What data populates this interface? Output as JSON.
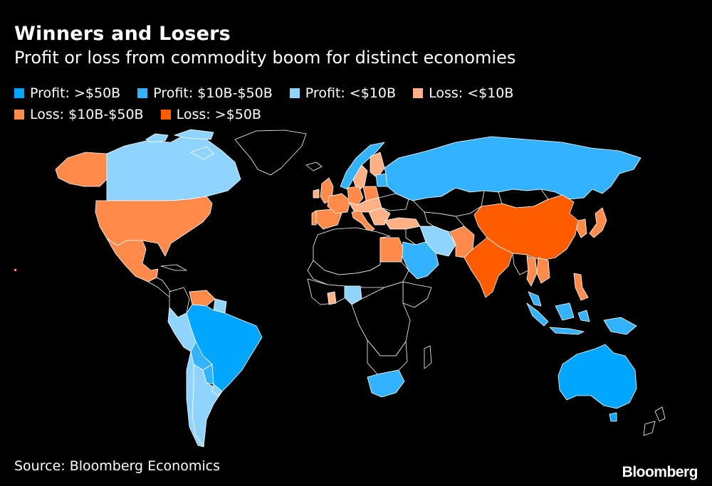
{
  "title": "Winners and Losers",
  "subtitle": "Profit or loss from commodity boom for distinct economies",
  "legend": [
    {
      "label": "Profit: >$50B",
      "color": "#00a6ff"
    },
    {
      "label": "Profit: $10B-$50B",
      "color": "#33b3ff"
    },
    {
      "label": "Profit: <$10B",
      "color": "#8fd4ff"
    },
    {
      "label": "Loss: <$10B",
      "color": "#ffb085"
    },
    {
      "label": "Loss: $10B-$50B",
      "color": "#ff8a4a"
    },
    {
      "label": "Loss: >$50B",
      "color": "#ff5c00"
    }
  ],
  "source": "Source: Bloomberg Economics",
  "brand": "Bloomberg"
}
